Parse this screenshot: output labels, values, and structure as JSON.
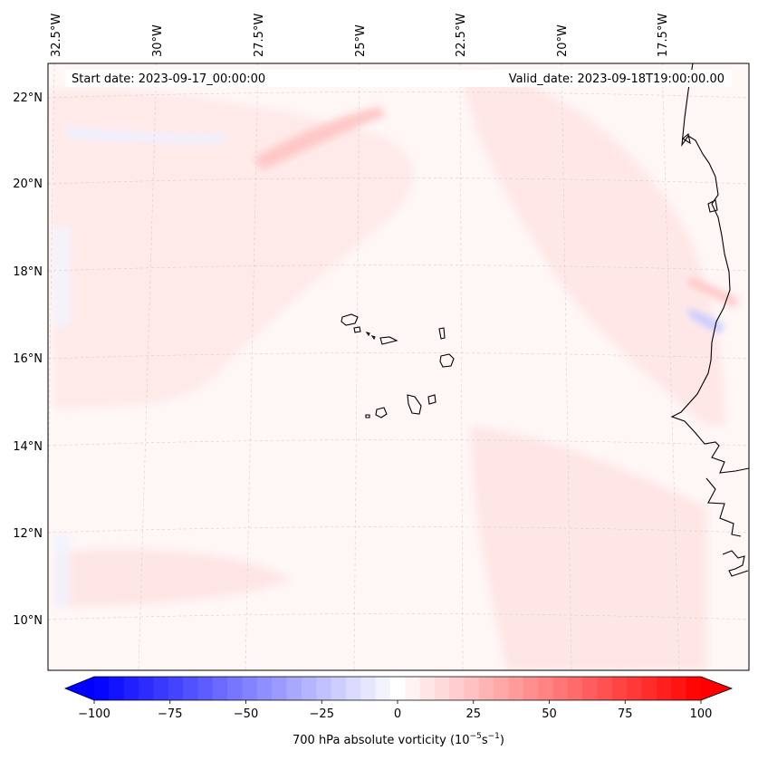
{
  "map": {
    "start_date_label": "Start date: 2023-09-17_00:00:00",
    "valid_date_label": "Valid_date: 2023-09-18T19:00:00.00",
    "lon_labels": [
      "32.5°W",
      "30°W",
      "27.5°W",
      "25°W",
      "22.5°W",
      "20°W",
      "17.5°W"
    ],
    "lat_labels": [
      "22°N",
      "20°N",
      "18°N",
      "16°N",
      "14°N",
      "12°N",
      "10°N"
    ],
    "gridlines": true,
    "features": [
      "coastline",
      "cape-verde-islands"
    ]
  },
  "colorbar": {
    "title_main": "700 hPa absolute vorticity (10",
    "title_exp1": "−5",
    "title_mid": "s",
    "title_exp2": "−1",
    "title_end": ")",
    "ticks": [
      -100,
      -75,
      -50,
      -25,
      0,
      25,
      50,
      75,
      100
    ],
    "tick_labels": [
      "−100",
      "−75",
      "−50",
      "−25",
      "0",
      "25",
      "50",
      "75",
      "100"
    ],
    "range": [
      -100,
      100
    ],
    "levels": 41,
    "extend": "both",
    "colormap": "bwr",
    "colors": {
      "min": "#0000ff",
      "mid": "#ffffff",
      "max": "#ff0000"
    }
  }
}
